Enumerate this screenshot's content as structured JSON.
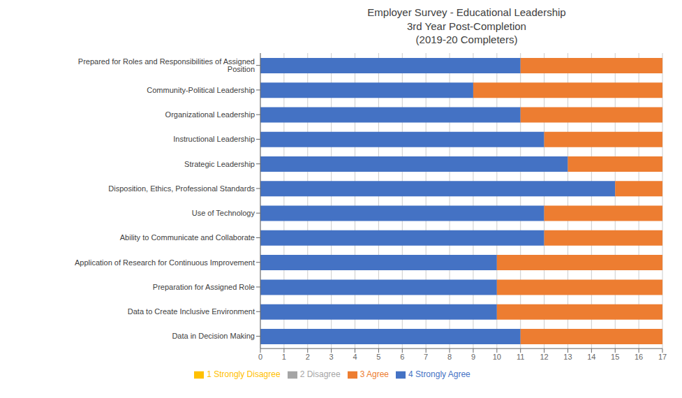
{
  "chart_data": {
    "type": "bar",
    "orientation": "horizontal",
    "stacked": true,
    "title": "Employer Survey - Educational Leadership\n3rd Year Post-Completion\n(2019-20 Completers)",
    "categories": [
      "Prepared for Roles and Responsibilities of Assigned Position",
      "Community-Political Leadership",
      "Organizational Leadership",
      "Instructional Leadership",
      "Strategic Leadership",
      "Disposition, Ethics, Professional Standards",
      "Use of Technology",
      "Ability to Communicate and Collaborate",
      "Application of Research for Continuous Improvement",
      "Preparation for Assigned Role",
      "Data to Create Inclusive Environment",
      "Data in Decision Making"
    ],
    "series": [
      {
        "name": "4 Strongly Agree",
        "color": "#4472C4",
        "values": [
          11,
          9,
          11,
          12,
          13,
          15,
          12,
          12,
          10,
          10,
          10,
          11
        ]
      },
      {
        "name": "3 Agree",
        "color": "#ED7D31",
        "values": [
          6,
          8,
          6,
          5,
          4,
          2,
          5,
          5,
          7,
          7,
          7,
          6
        ]
      },
      {
        "name": "2 Disagree",
        "color": "#A5A5A5",
        "values": [
          0,
          0,
          0,
          0,
          0,
          0,
          0,
          0,
          0,
          0,
          0,
          0
        ]
      },
      {
        "name": "1 Strongly Disagree",
        "color": "#FFC000",
        "values": [
          0,
          0,
          0,
          0,
          0,
          0,
          0,
          0,
          0,
          0,
          0,
          0
        ]
      }
    ],
    "xlim": [
      0,
      17
    ],
    "xticks": [
      0,
      1,
      2,
      3,
      4,
      5,
      6,
      7,
      8,
      9,
      10,
      11,
      12,
      13,
      14,
      15,
      16,
      17
    ],
    "grid": true,
    "legend": "bottom"
  }
}
